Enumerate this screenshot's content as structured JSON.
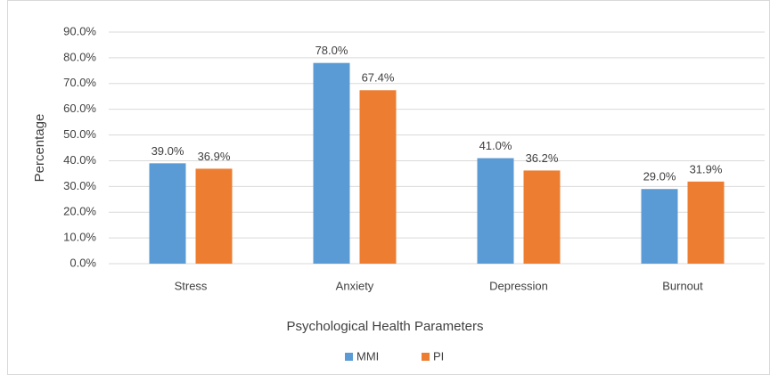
{
  "chart_data": {
    "type": "bar",
    "x_label": "Psychological Health Parameters",
    "y_label": "Percentage",
    "categories": [
      "Stress",
      "Anxiety",
      "Depression",
      "Burnout"
    ],
    "series": [
      {
        "name": "MMI",
        "color": "#5b9bd5",
        "values": [
          39.0,
          78.0,
          41.0,
          29.0
        ],
        "value_labels": [
          "39.0%",
          "78.0%",
          "41.0%",
          "29.0%"
        ]
      },
      {
        "name": "PI",
        "color": "#ed7d31",
        "values": [
          36.9,
          67.4,
          36.2,
          31.9
        ],
        "value_labels": [
          "36.9%",
          "67.4%",
          "36.2%",
          "31.9%"
        ]
      }
    ],
    "ylim": [
      0,
      90
    ],
    "yticks": [
      {
        "value": 0,
        "label": "0.0%"
      },
      {
        "value": 10,
        "label": "10.0%"
      },
      {
        "value": 20,
        "label": "20.0%"
      },
      {
        "value": 30,
        "label": "30.0%"
      },
      {
        "value": 40,
        "label": "40.0%"
      },
      {
        "value": 50,
        "label": "50.0%"
      },
      {
        "value": 60,
        "label": "60.0%"
      },
      {
        "value": 70,
        "label": "70.0%"
      },
      {
        "value": 80,
        "label": "80.0%"
      },
      {
        "value": 90,
        "label": "90.0%"
      }
    ],
    "legend": "bottom"
  }
}
